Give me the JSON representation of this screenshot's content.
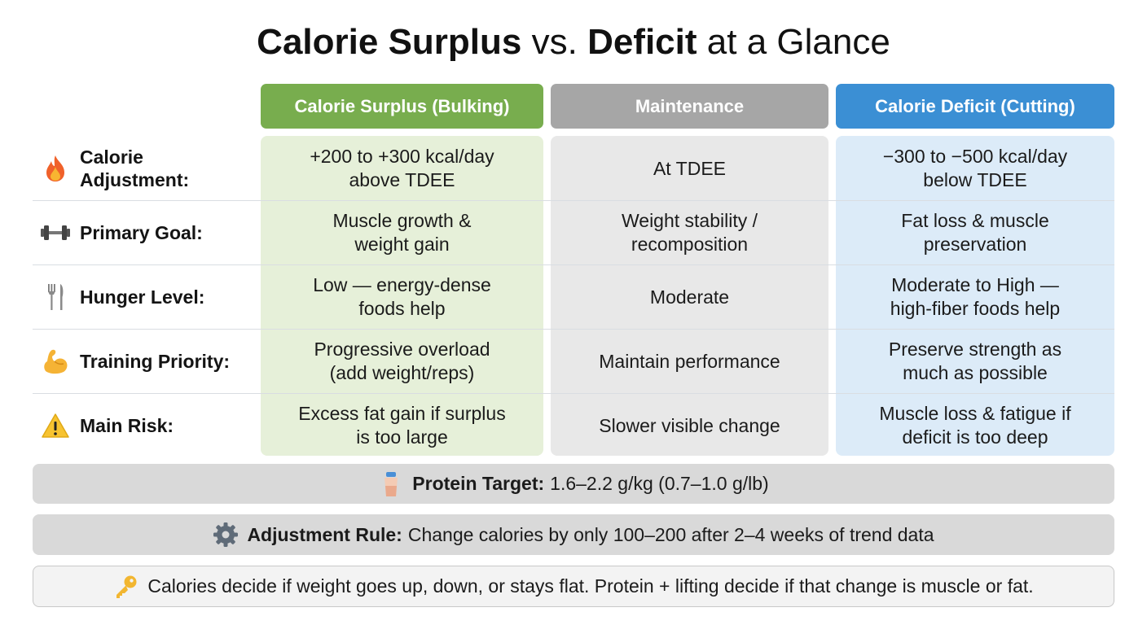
{
  "title": {
    "part1": "Calorie Surplus",
    "part2": "vs.",
    "part3": "Deficit",
    "part4": "at a Glance"
  },
  "columns": [
    {
      "label": "Calorie Surplus (Bulking)",
      "color": "#78ad4e",
      "bg": "#e6f0d9"
    },
    {
      "label": "Maintenance",
      "color": "#a6a6a6",
      "bg": "#e8e8e8"
    },
    {
      "label": "Calorie Deficit (Cutting)",
      "color": "#3b8fd4",
      "bg": "#dcebf8"
    }
  ],
  "rows": [
    {
      "icon": "fire-icon",
      "label": "Calorie\nAdjustment:",
      "cells": [
        "+200 to +300 kcal/day\nabove TDEE",
        "At TDEE",
        "−300 to −500 kcal/day\nbelow TDEE"
      ]
    },
    {
      "icon": "dumbbell-icon",
      "label": "Primary Goal:",
      "cells": [
        "Muscle growth &\nweight gain",
        "Weight stability /\nrecomposition",
        "Fat loss & muscle\npreservation"
      ]
    },
    {
      "icon": "fork-knife-icon",
      "label": "Hunger Level:",
      "cells": [
        "Low — energy-dense\nfoods help",
        "Moderate",
        "Moderate to High —\nhigh-fiber foods help"
      ]
    },
    {
      "icon": "flexed-biceps-icon",
      "label": "Training Priority:",
      "cells": [
        "Progressive overload\n(add weight/reps)",
        "Maintain performance",
        "Preserve strength as\nmuch as possible"
      ]
    },
    {
      "icon": "warning-icon",
      "label": "Main Risk:",
      "cells": [
        "Excess fat gain if surplus\nis too large",
        "Slower visible change",
        "Muscle loss & fatigue if\ndeficit is too deep"
      ]
    }
  ],
  "protein": {
    "icon": "shaker-bottle-icon",
    "label": "Protein Target:",
    "value": "1.6–2.2 g/kg (0.7–1.0 g/lb)"
  },
  "adjustment": {
    "icon": "gear-icon",
    "label": "Adjustment Rule:",
    "value": "Change calories by only 100–200 after 2–4 weeks of trend data"
  },
  "key_note": {
    "icon": "key-icon",
    "text": "Calories decide if weight goes up, down, or stays flat. Protein + lifting decide if that change is muscle or fat."
  }
}
